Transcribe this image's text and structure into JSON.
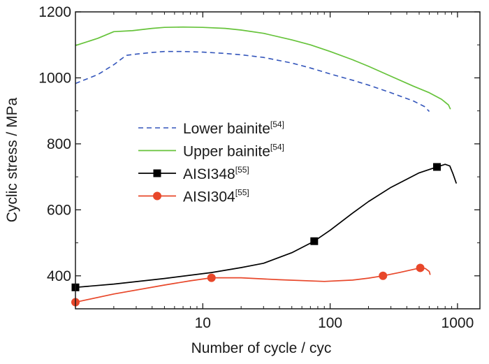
{
  "chart_data": {
    "type": "line",
    "title": "",
    "xlabel": "Number of cycle / cyc",
    "ylabel": "Cyclic stress / MPa",
    "xscale": "log",
    "xlim": [
      1,
      1500
    ],
    "ylim": [
      300,
      1200
    ],
    "xticks": [
      {
        "value": 10,
        "label": "10"
      },
      {
        "value": 100,
        "label": "100"
      },
      {
        "value": 1000,
        "label": "1000"
      }
    ],
    "yticks": [
      {
        "value": 400,
        "label": "400"
      },
      {
        "value": 600,
        "label": "600"
      },
      {
        "value": 800,
        "label": "800"
      },
      {
        "value": 1000,
        "label": "1000"
      },
      {
        "value": 1200,
        "label": "1200"
      }
    ],
    "legend_position": "middle-left",
    "series": [
      {
        "name": "Lower bainite",
        "ref": "[54]",
        "color": "#3355bb",
        "style": "dashed",
        "marker": "none",
        "points": [
          [
            1,
            983
          ],
          [
            1.5,
            1010
          ],
          [
            2,
            1040
          ],
          [
            2.5,
            1068
          ],
          [
            3,
            1072
          ],
          [
            4,
            1077
          ],
          [
            5,
            1080
          ],
          [
            7,
            1080
          ],
          [
            10,
            1078
          ],
          [
            15,
            1074
          ],
          [
            20,
            1070
          ],
          [
            30,
            1062
          ],
          [
            50,
            1045
          ],
          [
            70,
            1030
          ],
          [
            100,
            1012
          ],
          [
            150,
            993
          ],
          [
            200,
            978
          ],
          [
            300,
            955
          ],
          [
            450,
            930
          ],
          [
            550,
            913
          ],
          [
            600,
            898
          ]
        ]
      },
      {
        "name": "Upper bainite",
        "ref": "[54]",
        "color": "#66c33a",
        "style": "solid",
        "marker": "none",
        "points": [
          [
            1,
            1098
          ],
          [
            1.5,
            1120
          ],
          [
            2,
            1140
          ],
          [
            2.8,
            1143
          ],
          [
            4,
            1150
          ],
          [
            5,
            1153
          ],
          [
            7,
            1154
          ],
          [
            10,
            1153
          ],
          [
            15,
            1150
          ],
          [
            20,
            1145
          ],
          [
            30,
            1135
          ],
          [
            50,
            1115
          ],
          [
            70,
            1100
          ],
          [
            100,
            1080
          ],
          [
            150,
            1055
          ],
          [
            200,
            1035
          ],
          [
            300,
            1005
          ],
          [
            450,
            975
          ],
          [
            600,
            955
          ],
          [
            750,
            935
          ],
          [
            850,
            918
          ],
          [
            880,
            905
          ]
        ]
      },
      {
        "name": "AISI348",
        "ref": "[55]",
        "color": "#000000",
        "style": "solid",
        "marker": "square",
        "points": [
          [
            1,
            365
          ],
          [
            2,
            375
          ],
          [
            5,
            392
          ],
          [
            11.7,
            410
          ],
          [
            20,
            425
          ],
          [
            30,
            438
          ],
          [
            50,
            470
          ],
          [
            75,
            505
          ],
          [
            100,
            538
          ],
          [
            150,
            590
          ],
          [
            200,
            625
          ],
          [
            300,
            668
          ],
          [
            500,
            712
          ],
          [
            690,
            730
          ],
          [
            800,
            738
          ],
          [
            870,
            733
          ],
          [
            920,
            710
          ],
          [
            980,
            680
          ]
        ],
        "markers": [
          [
            1,
            365
          ],
          [
            75,
            505
          ],
          [
            690,
            730
          ]
        ]
      },
      {
        "name": "AISI304",
        "ref": "[55]",
        "color": "#e8472a",
        "style": "solid",
        "marker": "circle",
        "points": [
          [
            1,
            320
          ],
          [
            2,
            345
          ],
          [
            5,
            372
          ],
          [
            8,
            385
          ],
          [
            11.7,
            394
          ],
          [
            20,
            394
          ],
          [
            40,
            388
          ],
          [
            90,
            383
          ],
          [
            150,
            387
          ],
          [
            200,
            393
          ],
          [
            260,
            400
          ],
          [
            350,
            410
          ],
          [
            510,
            424
          ],
          [
            560,
            422
          ],
          [
            600,
            413
          ],
          [
            610,
            403
          ]
        ],
        "markers": [
          [
            1,
            320
          ],
          [
            11.7,
            394
          ],
          [
            260,
            400
          ],
          [
            510,
            424
          ]
        ]
      }
    ]
  }
}
